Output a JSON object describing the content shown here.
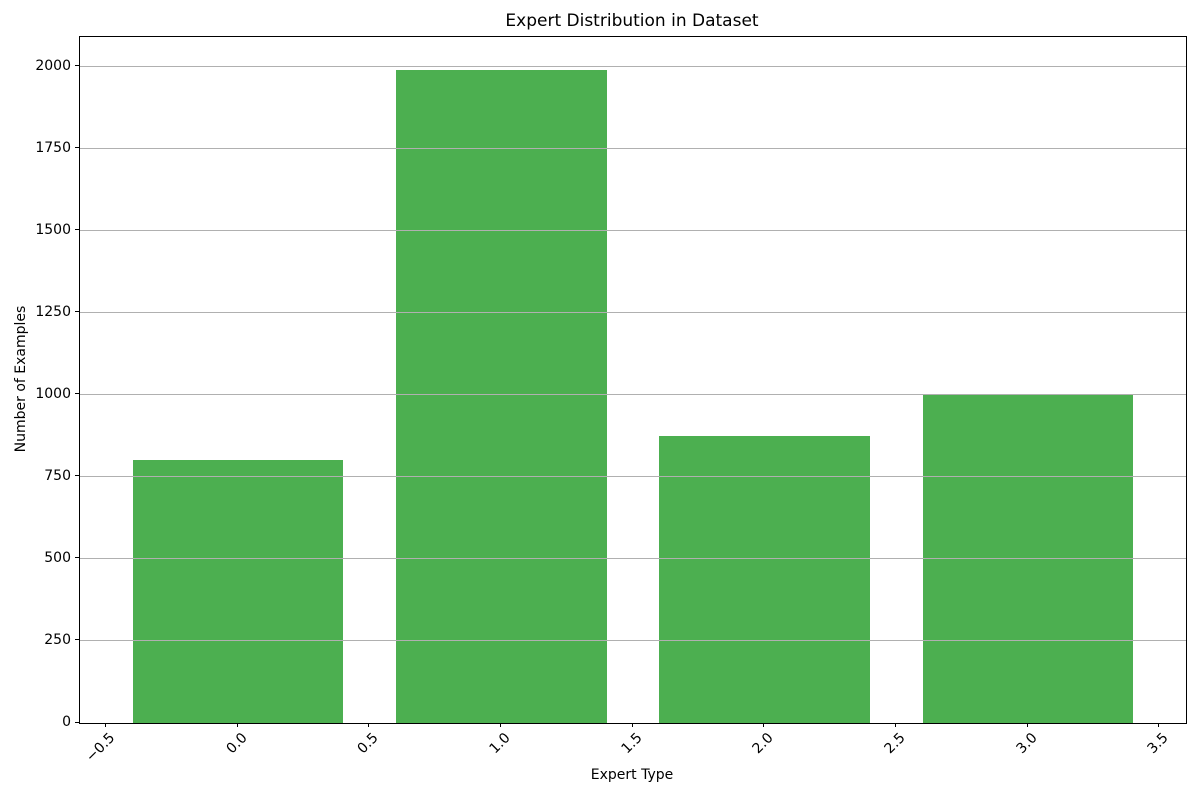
{
  "chart_data": {
    "type": "bar",
    "title": "Expert Distribution in Dataset",
    "xlabel": "Expert Type",
    "ylabel": "Number of Examples",
    "categories": [
      0,
      1,
      2,
      3
    ],
    "values": [
      800,
      1990,
      875,
      1000
    ],
    "bar_width": 0.8,
    "bar_color": "#4caf50",
    "grid": "horizontal",
    "grid_color": "#b0b0b0",
    "legend": "none",
    "xlim": [
      -0.6,
      3.6
    ],
    "ylim": [
      0,
      2090
    ],
    "xticks": [
      -0.5,
      0,
      0.5,
      1,
      1.5,
      2,
      2.5,
      3,
      3.5
    ],
    "xtick_labels": [
      "−0.5",
      "0.0",
      "0.5",
      "1.0",
      "1.5",
      "2.0",
      "2.5",
      "3.0",
      "3.5"
    ],
    "xtick_rotation": 45,
    "yticks": [
      0,
      250,
      500,
      750,
      1000,
      1250,
      1500,
      1750,
      2000
    ],
    "ytick_labels": [
      "0",
      "250",
      "500",
      "750",
      "1000",
      "1250",
      "1500",
      "1750",
      "2000"
    ]
  }
}
